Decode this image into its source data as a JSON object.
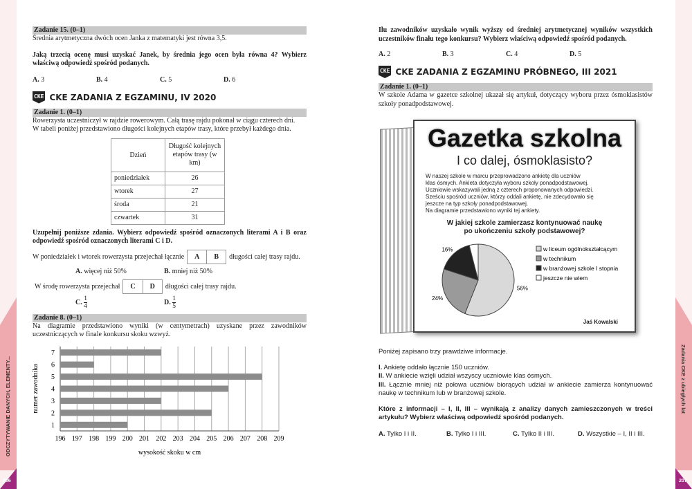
{
  "left": {
    "page_number": "206",
    "side_label": "ODCZYTYWANIE DANYCH, ELEMENTY...",
    "z15": {
      "header": "Zadanie 15. (0–1)",
      "text": "Średnia arytmetyczna dwóch ocen Janka z matematyki jest równa 3,5.",
      "question": "Jaką trzecią ocenę musi uzyskać Janek, by średnia jego ocen była równa 4? Wybierz właściwą odpowiedź spośród podanych.",
      "options": [
        {
          "l": "A.",
          "t": " 3"
        },
        {
          "l": "B.",
          "t": " 4"
        },
        {
          "l": "C.",
          "t": " 5"
        },
        {
          "l": "D.",
          "t": " 6"
        }
      ]
    },
    "cke1": {
      "badge": "CKE",
      "title": "CKE ZADANIA Z EGZAMINU, IV 2020"
    },
    "z1": {
      "header": "Zadanie 1. (0–1)",
      "text1": "Rowerzysta uczestniczył w rajdzie rowerowym. Całą trasę rajdu pokonał w ciągu czterech dni.",
      "text2": "W tabeli poniżej przedstawiono długości kolejnych etapów trasy, które przebył każdego dnia.",
      "table": {
        "h1": "Dzień",
        "h2": "Długość kolejnych etapów trasy (w km)",
        "rows": [
          [
            "poniedziałek",
            "26"
          ],
          [
            "wtorek",
            "27"
          ],
          [
            "środa",
            "21"
          ],
          [
            "czwartek",
            "31"
          ]
        ]
      },
      "instr": "Uzupełnij poniższe zdania. Wybierz odpowiedź spośród oznaczonych literami A i B oraz odpowiedź spośród oznaczonych literami C i D.",
      "s1a": "W poniedziałek i wtorek rowerzysta przejechał łącznie",
      "s1b": "długości całej trasy rajdu.",
      "box1": [
        "A",
        "B"
      ],
      "oA": "A.",
      "oAt": " więcej niż 50%",
      "oB": "B.",
      "oBt": " mniej niż 50%",
      "s2a": "W środę rowerzysta przejechał",
      "s2b": "długości całej trasy rajdu.",
      "box2": [
        "C",
        "D"
      ],
      "oC": "C.",
      "oCn": "1",
      "oCd": "4",
      "oD": "D.",
      "oDn": "1",
      "oDd": "5"
    },
    "z8": {
      "header": "Zadanie 8. (0–1)",
      "text": "Na diagramie przedstawiono wyniki (w centymetrach) uzyskane przez zawodników uczestniczących w finale konkursu skoku wzwyż."
    }
  },
  "chart_data": [
    {
      "type": "bar",
      "orientation": "horizontal",
      "categories": [
        "1",
        "2",
        "3",
        "4",
        "5",
        "6",
        "7"
      ],
      "values": [
        200,
        205,
        202,
        206,
        208,
        198,
        202
      ],
      "xlabel": "wysokość skoku w cm",
      "ylabel": "numer zawodnika",
      "xlim": [
        196,
        209
      ],
      "xticks": [
        196,
        197,
        198,
        199,
        200,
        201,
        202,
        203,
        204,
        205,
        206,
        207,
        208,
        209
      ],
      "grid": true,
      "bar_color": "#8c8c8c"
    },
    {
      "type": "pie",
      "title": "W jakiej szkole zamierzasz kontynuować naukę po ukończeniu szkoły podstawowej?",
      "labels": [
        "w liceum ogólnokształcącym",
        "w technikum",
        "w branżowej szkole I stopnia",
        "jeszcze nie wiem"
      ],
      "values": [
        56,
        24,
        16,
        4
      ],
      "data_labels": [
        "56%",
        "24%",
        "16%",
        ""
      ],
      "colors": [
        "#d9d9d9",
        "#9a9a9a",
        "#222222",
        "#ffffff"
      ],
      "legend": "right"
    }
  ],
  "right": {
    "page_number": "207",
    "side_label": "Zadania CKE z ubiegłych lat",
    "top": {
      "question": "Ilu zawodników uzyskało wynik wyższy od średniej arytmetycznej wyników wszystkich uczestników finału tego konkursu? Wybierz właściwą odpowiedź spośród podanych.",
      "options": [
        {
          "l": "A.",
          "t": " 2"
        },
        {
          "l": "B.",
          "t": " 3"
        },
        {
          "l": "C.",
          "t": " 4"
        },
        {
          "l": "D.",
          "t": " 5"
        }
      ]
    },
    "cke2": {
      "badge": "CKE",
      "title": "CKE ZADANIA Z EGZAMINU PRÓBNEGO, III 2021"
    },
    "z1": {
      "header": "Zadanie 1. (0–1)",
      "text": "W szkole Adama w gazetce szkolnej ukazał się artykuł, dotyczący wyboru przez ósmoklasistów szkoły ponadpodstawowej."
    },
    "gazette": {
      "title": "Gazetka szkolna",
      "subtitle": "I co dalej, ósmoklasisto?",
      "body": [
        "W naszej szkole w marcu przeprowadzono ankietę dla uczniów",
        "klas ósmych. Ankieta dotyczyła wyboru szkoły ponadpodstawowej.",
        "Uczniowie wskazywali jedną z czterech proponowanych odpowiedzi.",
        "Sześciu spośród uczniów, którzy oddali ankietę, nie zdecydowało się",
        "jeszcze na typ szkoły ponadpodstawowej.",
        "Na diagramie przedstawiono wyniki tej ankiety."
      ],
      "chart_title1": "W jakiej szkole zamierzasz kontynuować naukę",
      "chart_title2": "po ukończeniu szkoły podstawowej?",
      "author": "Jaś Kowalski"
    },
    "info_intro": "Poniżej zapisano trzy prawdziwe informacje.",
    "info": [
      {
        "n": "I.",
        "t": " Ankietę oddało łącznie 150 uczniów."
      },
      {
        "n": "II.",
        "t": " W ankiecie wzięli udział wszyscy uczniowie klas ósmych."
      },
      {
        "n": "III.",
        "t": " Łącznie mniej niż połowa uczniów biorących udział w ankiecie zamierza kontynuować naukę w technikum lub w branżowej szkole."
      }
    ],
    "question": "Które z informacji – I, II, III – wynikają z analizy danych zamieszczonych w treści artykułu? Wybierz właściwą odpowiedź spośród podanych.",
    "options": [
      {
        "l": "A.",
        "t": " Tylko I i II."
      },
      {
        "l": "B.",
        "t": " Tylko I i III."
      },
      {
        "l": "C.",
        "t": " Tylko II i III."
      },
      {
        "l": "D.",
        "t": " Wszystkie – I, II i III."
      }
    ]
  }
}
